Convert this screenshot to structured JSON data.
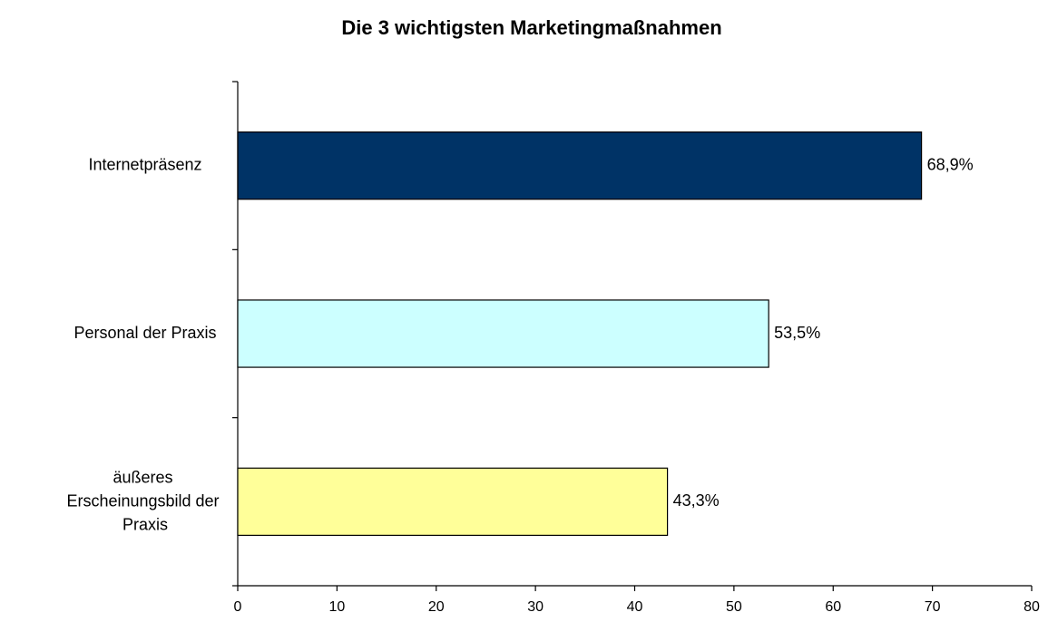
{
  "chart_data": {
    "type": "barh",
    "title": "Die 3 wichtigsten Marketingmaßnahmen",
    "categories": [
      "Internetpräsenz",
      "Personal der Praxis",
      "äußeres Erscheinungsbild der Praxis"
    ],
    "values": [
      68.9,
      53.5,
      43.3
    ],
    "value_labels": [
      "68,9%",
      "53,5%",
      "43,3%"
    ],
    "colors": [
      "#003366",
      "#ccffff",
      "#ffff99"
    ],
    "xlim": [
      0,
      80
    ],
    "xticks": [
      0,
      10,
      20,
      30,
      40,
      50,
      60,
      70,
      80
    ],
    "grid": false
  }
}
